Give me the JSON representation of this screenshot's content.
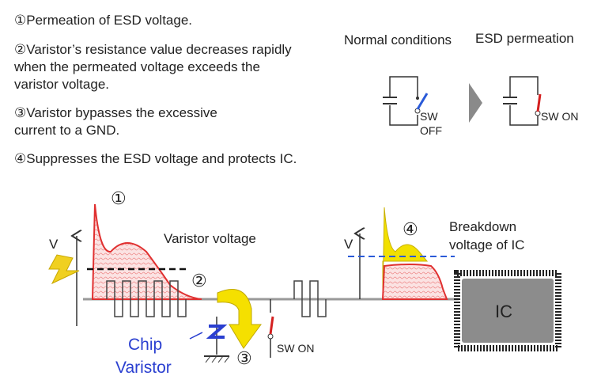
{
  "notes": [
    {
      "lines": [
        "①Permeation of ESD voltage."
      ]
    },
    {
      "lines": [
        "②Varistor’s resistance value decreases rapidly",
        "when the permeated voltage exceeds the",
        "varistor voltage."
      ]
    },
    {
      "lines": [
        "③Varistor  bypasses the excessive",
        "current to a GND."
      ]
    },
    {
      "lines": [
        "④Suppresses the ESD voltage and protects IC."
      ]
    }
  ],
  "legend": {
    "normal": {
      "label": "Normal conditions",
      "switch": [
        "SW",
        "OFF"
      ]
    },
    "esd": {
      "label": "ESD permeation",
      "switch": "SW ON"
    }
  },
  "diagram": {
    "step1": "①",
    "varistor_voltage": "Varistor voltage",
    "step2": "②",
    "chip_varistor": [
      "Chip",
      "Varistor"
    ],
    "step3": "③",
    "switch": "SW ON",
    "step4": "④",
    "breakdown": [
      "Breakdown",
      "voltage of IC"
    ],
    "ic": "IC",
    "axis_left": "V",
    "axis_right": "V"
  }
}
